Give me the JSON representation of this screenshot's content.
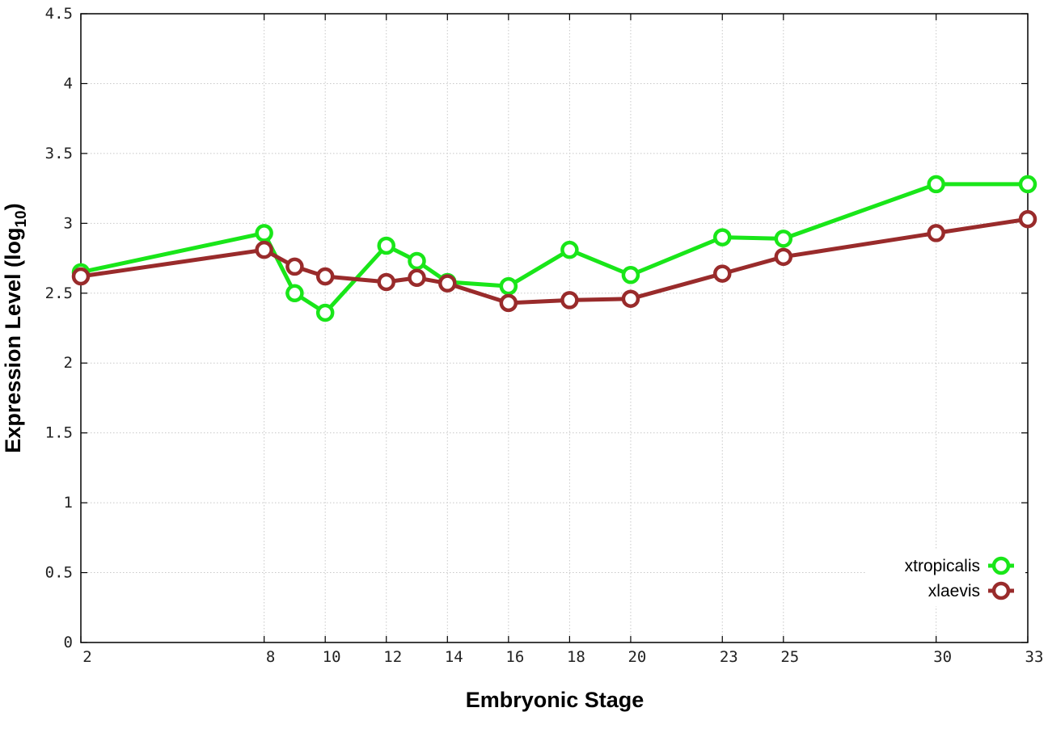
{
  "chart_data": {
    "type": "line",
    "xlabel": "Embryonic Stage",
    "ylabel_main": "Expression Level (log",
    "ylabel_sub": "10",
    "ylabel_close": ")",
    "xlim": [
      2,
      33
    ],
    "ylim": [
      0,
      4.5
    ],
    "x_ticks": [
      2,
      8,
      10,
      12,
      14,
      16,
      18,
      20,
      23,
      25,
      30,
      33
    ],
    "y_ticks": [
      0,
      0.5,
      1,
      1.5,
      2,
      2.5,
      3,
      3.5,
      4,
      4.5
    ],
    "grid": true,
    "legend_position": "bottom-right",
    "series": [
      {
        "name": "xtropicalis",
        "color": "#19e619",
        "x": [
          2,
          8,
          9,
          10,
          12,
          13,
          14,
          16,
          18,
          20,
          23,
          25,
          30,
          33
        ],
        "y": [
          2.65,
          2.93,
          2.5,
          2.36,
          2.84,
          2.73,
          2.58,
          2.55,
          2.81,
          2.63,
          2.9,
          2.89,
          3.28,
          3.28
        ]
      },
      {
        "name": "xlaevis",
        "color": "#992b2b",
        "x": [
          2,
          8,
          9,
          10,
          12,
          13,
          14,
          16,
          18,
          20,
          23,
          25,
          30,
          33
        ],
        "y": [
          2.62,
          2.81,
          2.69,
          2.62,
          2.58,
          2.61,
          2.57,
          2.43,
          2.45,
          2.46,
          2.64,
          2.76,
          2.93,
          3.03
        ]
      }
    ]
  }
}
